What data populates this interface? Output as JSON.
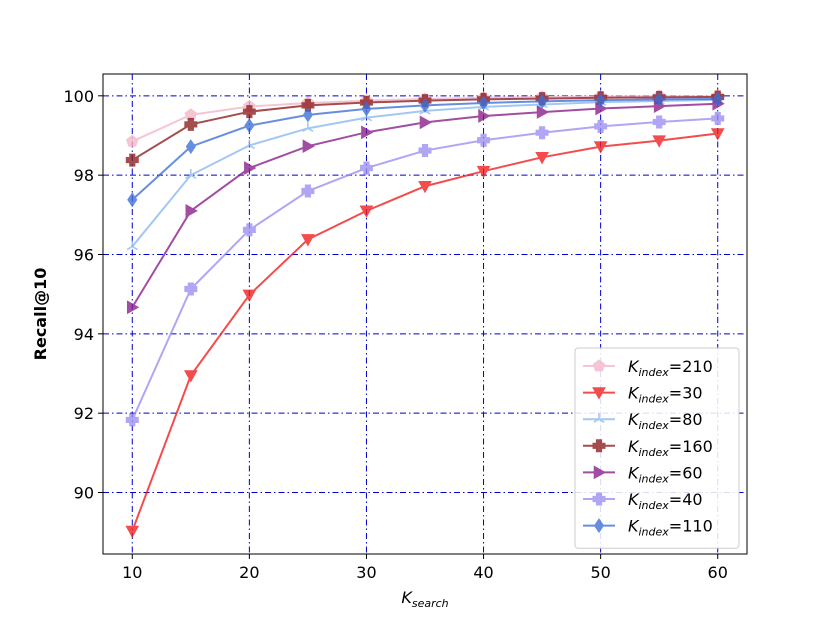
{
  "chart_data": {
    "type": "line",
    "title": "",
    "xlabel": "K",
    "xlabel_sub": "search",
    "ylabel": "Recall@10",
    "xlim": [
      7.5,
      62.5
    ],
    "ylim": [
      88.45,
      100.55
    ],
    "xticks": [
      10,
      20,
      30,
      40,
      50,
      60
    ],
    "yticks": [
      90,
      92,
      94,
      96,
      98,
      100
    ],
    "grid": true,
    "grid_color": "#0000cc",
    "legend_position": "lower-right",
    "x": [
      10,
      15,
      20,
      25,
      30,
      35,
      40,
      45,
      50,
      55,
      60
    ],
    "series": [
      {
        "name": "K",
        "name_sub": "index",
        "name_suffix": "=210",
        "color": "#f4b6c8",
        "marker": "pentagon",
        "values": [
          98.85,
          99.52,
          99.73,
          99.82,
          99.88,
          99.92,
          99.95,
          99.97,
          99.98,
          99.99,
          99.99
        ]
      },
      {
        "name": "K",
        "name_sub": "index",
        "name_suffix": "=30",
        "color": "#f21b1b",
        "marker": "triangle-down",
        "values": [
          89.03,
          92.95,
          94.98,
          96.38,
          97.1,
          97.72,
          98.1,
          98.45,
          98.72,
          98.87,
          99.05
        ]
      },
      {
        "name": "K",
        "name_sub": "index",
        "name_suffix": "=80",
        "color": "#8ab8f0",
        "marker": "tri",
        "values": [
          96.2,
          98.0,
          98.75,
          99.18,
          99.45,
          99.62,
          99.72,
          99.78,
          99.84,
          99.87,
          99.9
        ]
      },
      {
        "name": "K",
        "name_sub": "index",
        "name_suffix": "=160",
        "color": "#8b1c1c",
        "marker": "plus",
        "values": [
          98.38,
          99.28,
          99.6,
          99.76,
          99.83,
          99.88,
          99.91,
          99.93,
          99.95,
          99.96,
          99.97
        ]
      },
      {
        "name": "K",
        "name_sub": "index",
        "name_suffix": "=60",
        "color": "#881c88",
        "marker": "triangle-right",
        "values": [
          94.67,
          97.1,
          98.18,
          98.73,
          99.08,
          99.33,
          99.49,
          99.59,
          99.68,
          99.74,
          99.8
        ]
      },
      {
        "name": "K",
        "name_sub": "index",
        "name_suffix": "=40",
        "color": "#9b8ef2",
        "marker": "plus",
        "values": [
          91.83,
          95.13,
          96.62,
          97.6,
          98.18,
          98.62,
          98.88,
          99.07,
          99.23,
          99.34,
          99.43
        ]
      },
      {
        "name": "K",
        "name_sub": "index",
        "name_suffix": "=110",
        "color": "#3c6fd8",
        "marker": "diamond",
        "values": [
          97.38,
          98.72,
          99.25,
          99.52,
          99.67,
          99.76,
          99.82,
          99.86,
          99.89,
          99.91,
          99.92
        ]
      }
    ]
  }
}
